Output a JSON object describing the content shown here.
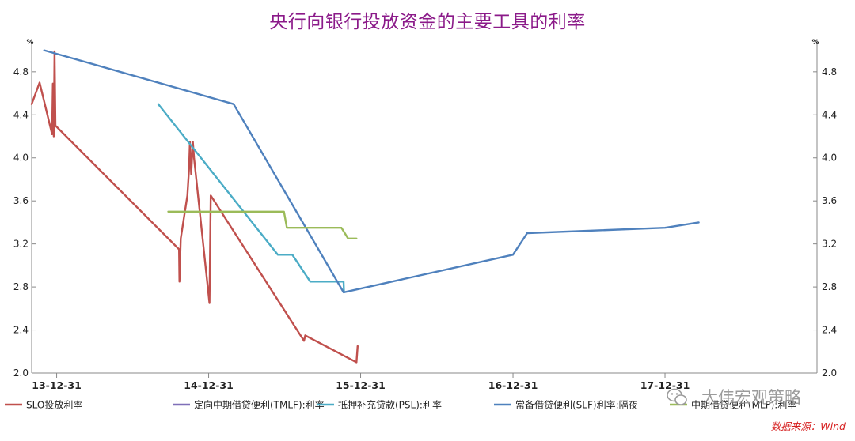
{
  "chart_data": {
    "type": "line",
    "title": "央行向银行投放资金的主要工具的利率",
    "y_unit_left": "%",
    "y_unit_right": "%",
    "ylim": [
      2.0,
      5.1
    ],
    "y_ticks": [
      2.0,
      2.4,
      2.8,
      3.2,
      3.6,
      4.0,
      4.4,
      4.8
    ],
    "y_tick_labels": [
      "2.0",
      "2.4",
      "2.8",
      "3.2",
      "3.6",
      "4.0",
      "4.4",
      "4.8"
    ],
    "x_range": [
      "2013-11-01",
      "2018-12-31"
    ],
    "x_ticks": [
      "2013-12-31",
      "2014-12-31",
      "2015-12-31",
      "2016-12-31",
      "2017-12-31"
    ],
    "x_tick_labels": [
      "13-12-31",
      "14-12-31",
      "15-12-31",
      "16-12-31",
      "17-12-31"
    ],
    "grid": false,
    "legend_position": "bottom",
    "series": [
      {
        "name": "SLO投放利率",
        "color": "#c0504d",
        "points": [
          [
            "2013-11-01",
            4.5
          ],
          [
            "2013-11-20",
            4.7
          ],
          [
            "2013-12-20",
            4.22
          ],
          [
            "2013-12-22",
            4.69
          ],
          [
            "2013-12-24",
            4.2
          ],
          [
            "2013-12-26",
            4.99
          ],
          [
            "2013-12-28",
            4.3
          ],
          [
            "2014-10-21",
            3.15
          ],
          [
            "2014-10-22",
            2.85
          ],
          [
            "2014-10-25",
            3.25
          ],
          [
            "2014-11-10",
            3.65
          ],
          [
            "2014-11-14",
            3.9
          ],
          [
            "2014-11-16",
            4.15
          ],
          [
            "2014-11-19",
            3.85
          ],
          [
            "2014-11-23",
            4.15
          ],
          [
            "2014-11-26",
            4.0
          ],
          [
            "2015-01-02",
            2.65
          ],
          [
            "2015-01-05",
            3.65
          ],
          [
            "2015-08-17",
            2.3
          ],
          [
            "2015-08-20",
            2.35
          ],
          [
            "2015-12-21",
            2.1
          ],
          [
            "2015-12-24",
            2.25
          ]
        ]
      },
      {
        "name": "定向中期借贷便利(TMLF):利率",
        "color": "#7f6fb8",
        "points": []
      },
      {
        "name": "抵押补充贷款(PSL):利率",
        "color": "#4bacc6",
        "points": [
          [
            "2014-09-01",
            4.5
          ],
          [
            "2015-06-15",
            3.1
          ],
          [
            "2015-07-20",
            3.1
          ],
          [
            "2015-09-01",
            2.85
          ],
          [
            "2015-11-20",
            2.85
          ],
          [
            "2015-11-21",
            2.75
          ]
        ]
      },
      {
        "name": "常备借贷便利(SLF)利率:隔夜",
        "color": "#4f81bd",
        "points": [
          [
            "2013-12-01",
            5.0
          ],
          [
            "2015-03-01",
            4.5
          ],
          [
            "2015-11-20",
            2.75
          ],
          [
            "2016-12-31",
            3.1
          ],
          [
            "2017-02-03",
            3.3
          ],
          [
            "2017-12-31",
            3.35
          ],
          [
            "2018-03-22",
            3.4
          ]
        ]
      },
      {
        "name": "中期借贷便利(MLF):利率",
        "color": "#9bbb59",
        "points": [
          [
            "2014-09-25",
            3.5
          ],
          [
            "2015-06-30",
            3.5
          ],
          [
            "2015-07-07",
            3.35
          ],
          [
            "2015-11-15",
            3.35
          ],
          [
            "2015-12-01",
            3.25
          ],
          [
            "2015-12-21",
            3.25
          ]
        ]
      }
    ],
    "source_note": "数据来源：Wind",
    "watermark": "大伟宏观策略"
  },
  "colors": {
    "title": "#8b1a89",
    "axis": "#888888"
  }
}
